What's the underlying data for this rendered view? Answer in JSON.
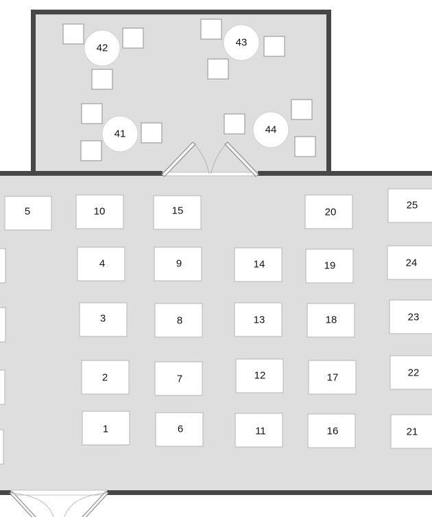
{
  "floor_plan": {
    "colors": {
      "floor": "#dedede",
      "wall": "#474747",
      "table": "#ffffff",
      "table_border": "#bdbdbd",
      "doorway": "#ffffff"
    },
    "round_tables": [
      {
        "label": "42"
      },
      {
        "label": "43"
      },
      {
        "label": "41"
      },
      {
        "label": "44"
      }
    ],
    "tables": [
      {
        "label": "5"
      },
      {
        "label": "10"
      },
      {
        "label": "15"
      },
      {
        "label": "20"
      },
      {
        "label": "25"
      },
      {
        "label": "4"
      },
      {
        "label": "9"
      },
      {
        "label": "14"
      },
      {
        "label": "19"
      },
      {
        "label": "24"
      },
      {
        "label": "3"
      },
      {
        "label": "8"
      },
      {
        "label": "13"
      },
      {
        "label": "18"
      },
      {
        "label": "23"
      },
      {
        "label": "2"
      },
      {
        "label": "7"
      },
      {
        "label": "12"
      },
      {
        "label": "17"
      },
      {
        "label": "22"
      },
      {
        "label": "1"
      },
      {
        "label": "6"
      },
      {
        "label": "11"
      },
      {
        "label": "16"
      },
      {
        "label": "21"
      }
    ]
  }
}
